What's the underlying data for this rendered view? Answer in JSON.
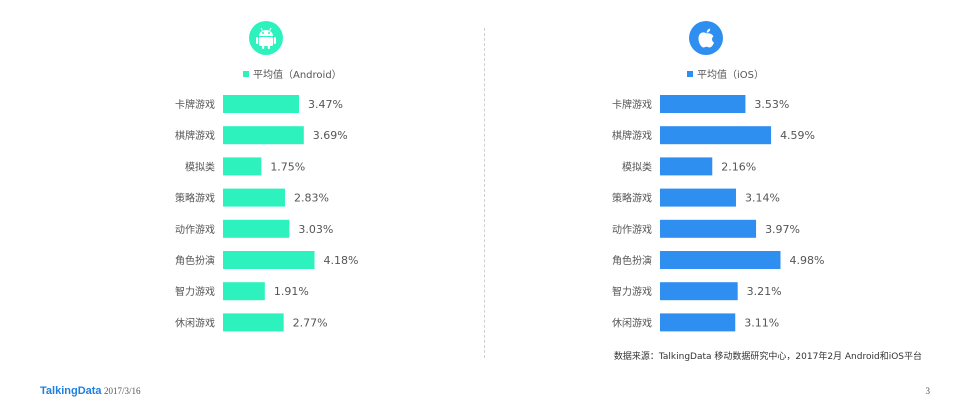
{
  "chart_data": [
    {
      "type": "bar",
      "orientation": "horizontal",
      "platform": "Android",
      "legend": "平均值（Android）",
      "color": "#2ef2be",
      "categories": [
        "卡牌游戏",
        "棋牌游戏",
        "模拟类",
        "策略游戏",
        "动作游戏",
        "角色扮演",
        "智力游戏",
        "休闲游戏"
      ],
      "values": [
        3.47,
        3.69,
        1.75,
        2.83,
        3.03,
        4.18,
        1.91,
        2.77
      ],
      "value_labels": [
        "3.47%",
        "3.69%",
        "1.75%",
        "2.83%",
        "3.03%",
        "4.18%",
        "1.91%",
        "2.77%"
      ],
      "xlim": [
        0,
        5
      ],
      "unit": "%",
      "grid": false,
      "legend_position": "top"
    },
    {
      "type": "bar",
      "orientation": "horizontal",
      "platform": "iOS",
      "legend": "平均值（iOS）",
      "color": "#2f8ff0",
      "categories": [
        "卡牌游戏",
        "棋牌游戏",
        "模拟类",
        "策略游戏",
        "动作游戏",
        "角色扮演",
        "智力游戏",
        "休闲游戏"
      ],
      "values": [
        3.53,
        4.59,
        2.16,
        3.14,
        3.97,
        4.98,
        3.21,
        3.11
      ],
      "value_labels": [
        "3.53%",
        "4.59%",
        "2.16%",
        "3.14%",
        "3.97%",
        "4.98%",
        "3.21%",
        "3.11%"
      ],
      "xlim": [
        0,
        5
      ],
      "unit": "%",
      "grid": false,
      "legend_position": "top"
    }
  ],
  "icons": {
    "android": "android-robot-icon",
    "ios": "apple-logo-icon"
  },
  "source_note": "数据来源：TalkingData 移动数据研究中心，2017年2月 Android和iOS平台",
  "footer": {
    "brand": "TalkingData",
    "date": "2017/3/16",
    "page": "3",
    "brand_color": "#1e7fe0"
  }
}
